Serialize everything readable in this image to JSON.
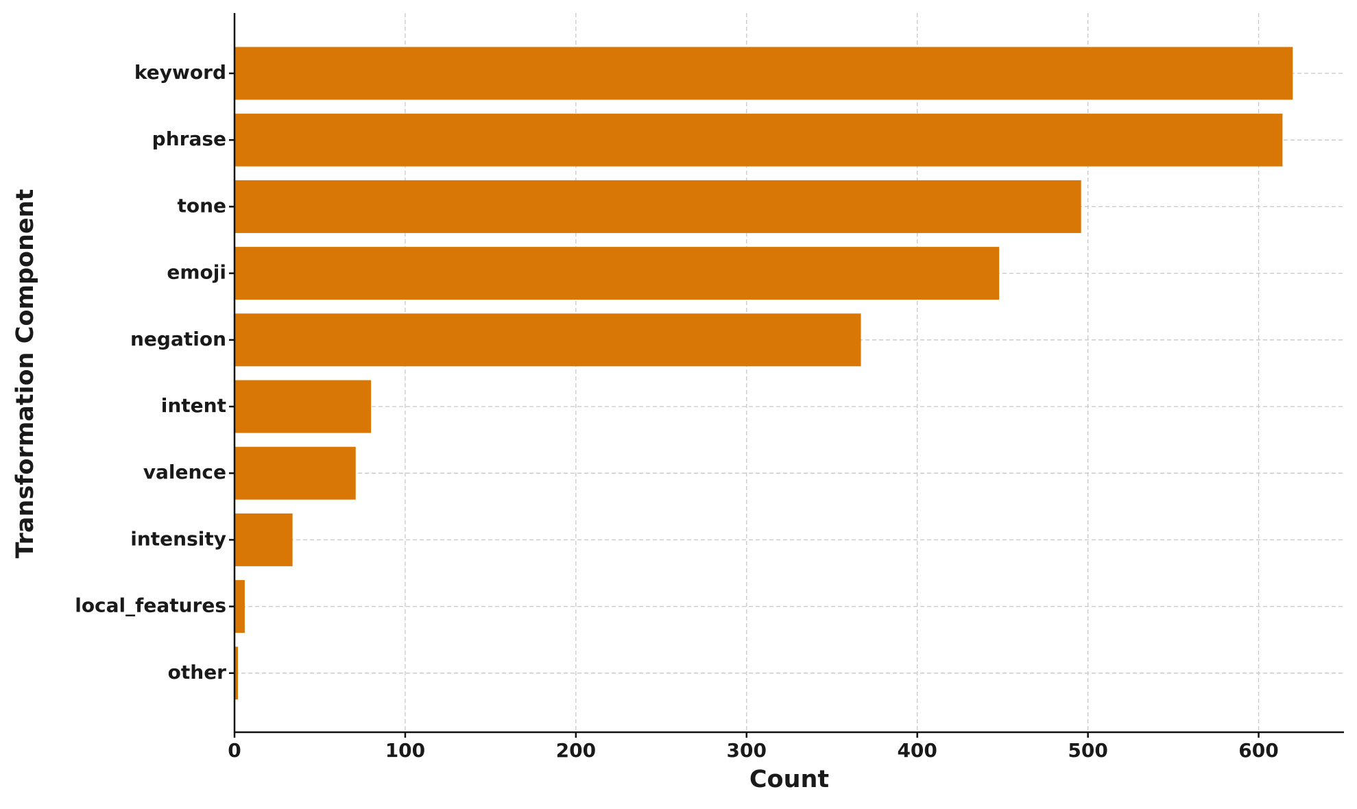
{
  "chart_data": {
    "type": "barh",
    "xlabel": "Count",
    "ylabel": "Transformation Component",
    "categories": [
      "keyword",
      "phrase",
      "tone",
      "emoji",
      "negation",
      "intent",
      "valence",
      "intensity",
      "local_features",
      "other"
    ],
    "values": [
      620,
      614,
      496,
      448,
      367,
      80,
      71,
      34,
      6,
      2
    ],
    "color": "#d97706",
    "xlim": [
      0,
      650
    ],
    "xticks": [
      0,
      100,
      200,
      300,
      400,
      500,
      600
    ],
    "grid": true
  }
}
